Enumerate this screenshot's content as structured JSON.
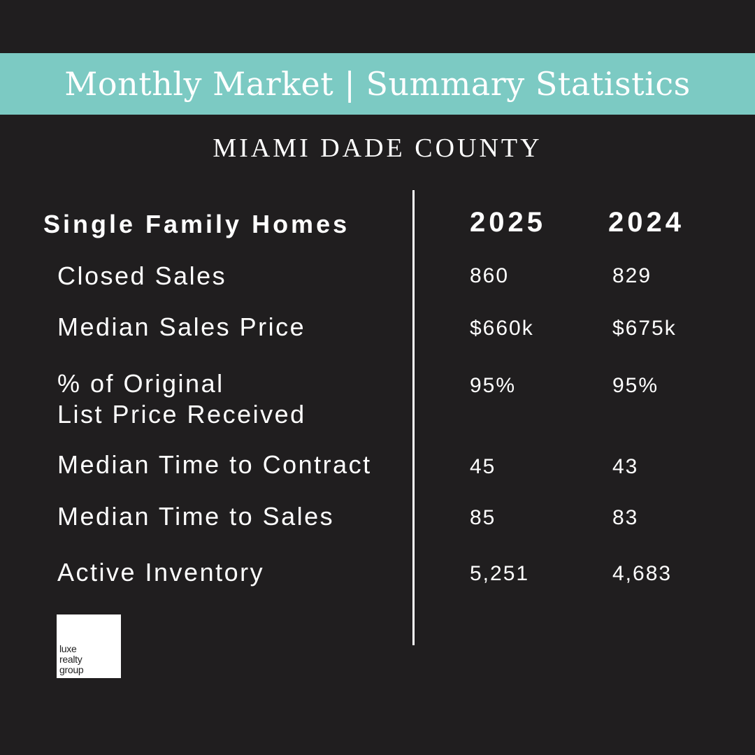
{
  "header": {
    "title": "Monthly Market | Summary Statistics"
  },
  "region": {
    "name": "MIAMI DADE COUNTY"
  },
  "table": {
    "section_title": "Single Family Homes",
    "columns": [
      "2025",
      "2024"
    ],
    "rows": [
      {
        "label_line1": "Closed Sales",
        "label_line2": "",
        "values": [
          "860",
          "829"
        ]
      },
      {
        "label_line1": "Median Sales Price",
        "label_line2": "",
        "values": [
          "$660k",
          "$675k"
        ]
      },
      {
        "label_line1": "% of Original",
        "label_line2": "List Price Received",
        "values": [
          "95%",
          "95%"
        ]
      },
      {
        "label_line1": "Median Time to Contract",
        "label_line2": "",
        "values": [
          "45",
          "43"
        ]
      },
      {
        "label_line1": "Median Time to Sales",
        "label_line2": "",
        "values": [
          "85",
          "83"
        ]
      },
      {
        "label_line1": "Active Inventory",
        "label_line2": "",
        "values": [
          "5,251",
          "4,683"
        ]
      }
    ]
  },
  "logo": {
    "line1": "luxe",
    "line2": "realty",
    "line3": "group"
  },
  "colors": {
    "background": "#201e1f",
    "accent": "#7ccac3",
    "text": "#ffffff"
  }
}
